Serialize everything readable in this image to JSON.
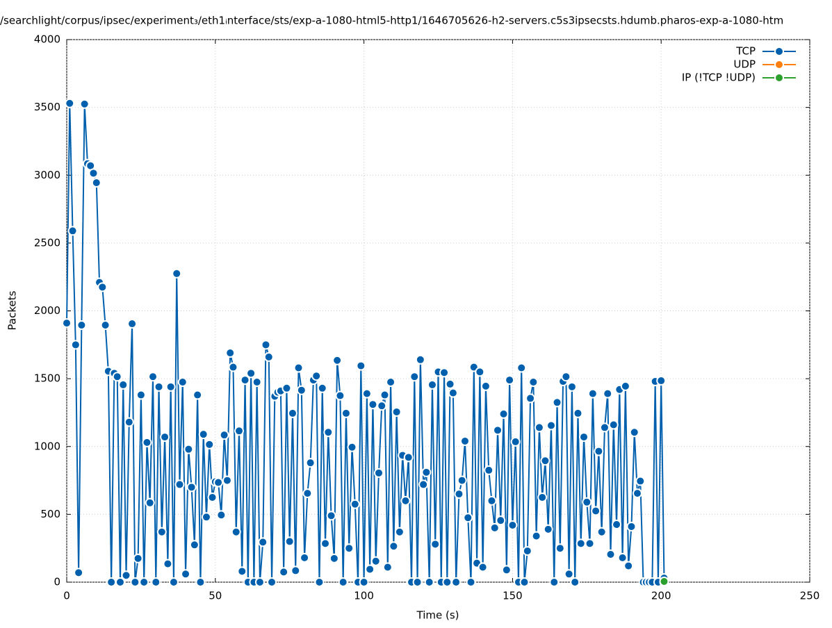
{
  "chart_data": {
    "type": "line",
    "title": "/searchlight/corpus/ipsec/experiment₃/eth1ᵢnterface/sts/exp-a-1080-html5-http1/1646705626-h2-servers.c5s3ipsecsts.hdumb.pharos-exp-a-1080-htm",
    "x_label": "Time (s)",
    "y_label": "Packets",
    "xlim": [
      0,
      250
    ],
    "xticks": [
      0,
      50,
      100,
      150,
      200,
      250
    ],
    "ylim": [
      0,
      4000
    ],
    "yticks": [
      0,
      500,
      1000,
      1500,
      2000,
      2500,
      3000,
      3500,
      4000
    ],
    "grid": true,
    "legend": "top-right",
    "series": [
      {
        "name": "TCP",
        "color": "#0060ad",
        "x": [
          0,
          1,
          2,
          3,
          4,
          5,
          6,
          7,
          8,
          9,
          10,
          11,
          12,
          13,
          14,
          15,
          16,
          17,
          18,
          19,
          20,
          21,
          22,
          23,
          24,
          25,
          26,
          27,
          28,
          29,
          30,
          31,
          32,
          33,
          34,
          35,
          36,
          37,
          38,
          39,
          40,
          41,
          42,
          43,
          44,
          45,
          46,
          47,
          48,
          49,
          50,
          51,
          52,
          53,
          54,
          55,
          56,
          57,
          58,
          59,
          60,
          61,
          62,
          63,
          64,
          65,
          66,
          67,
          68,
          69,
          70,
          71,
          72,
          73,
          74,
          75,
          76,
          77,
          78,
          79,
          80,
          81,
          82,
          83,
          84,
          85,
          86,
          87,
          88,
          89,
          90,
          91,
          92,
          93,
          94,
          95,
          96,
          97,
          98,
          99,
          100,
          101,
          102,
          103,
          104,
          105,
          106,
          107,
          108,
          109,
          110,
          111,
          112,
          113,
          114,
          115,
          116,
          117,
          118,
          119,
          120,
          121,
          122,
          123,
          124,
          125,
          126,
          127,
          128,
          129,
          130,
          131,
          132,
          133,
          134,
          135,
          136,
          137,
          138,
          139,
          140,
          141,
          142,
          143,
          144,
          145,
          146,
          147,
          148,
          149,
          150,
          151,
          152,
          153,
          154,
          155,
          156,
          157,
          158,
          159,
          160,
          161,
          162,
          163,
          164,
          165,
          166,
          167,
          168,
          169,
          170,
          171,
          172,
          173,
          174,
          175,
          176,
          177,
          178,
          179,
          180,
          181,
          182,
          183,
          184,
          185,
          186,
          187,
          188,
          189,
          190,
          191,
          192,
          193,
          194,
          195,
          196,
          197,
          198,
          199,
          200,
          201
        ],
        "values": [
          1910,
          3530,
          2590,
          1750,
          70,
          1895,
          3525,
          3085,
          3070,
          3015,
          2945,
          2210,
          2175,
          1895,
          1555,
          0,
          1540,
          1515,
          0,
          1455,
          50,
          1180,
          1905,
          0,
          175,
          1380,
          0,
          1030,
          585,
          1515,
          0,
          1440,
          370,
          1070,
          135,
          1440,
          0,
          2275,
          720,
          1475,
          60,
          980,
          700,
          275,
          1380,
          0,
          1090,
          480,
          1015,
          625,
          740,
          735,
          495,
          1085,
          750,
          1690,
          1585,
          370,
          1115,
          80,
          1490,
          0,
          1540,
          0,
          1475,
          0,
          295,
          1750,
          1660,
          0,
          1370,
          1400,
          1410,
          75,
          1430,
          300,
          1245,
          85,
          1580,
          1415,
          180,
          655,
          880,
          1490,
          1520,
          0,
          1430,
          285,
          1105,
          490,
          175,
          1635,
          1375,
          0,
          1245,
          250,
          995,
          575,
          0,
          1595,
          0,
          1390,
          95,
          1310,
          155,
          805,
          1300,
          1380,
          110,
          1475,
          265,
          1255,
          370,
          935,
          600,
          920,
          0,
          1515,
          0,
          1640,
          720,
          810,
          0,
          1455,
          280,
          1550,
          0,
          1545,
          0,
          1460,
          1395,
          0,
          650,
          750,
          1040,
          475,
          0,
          1585,
          140,
          1550,
          110,
          1445,
          825,
          600,
          400,
          1120,
          455,
          1240,
          90,
          1490,
          420,
          1035,
          0,
          1580,
          0,
          230,
          1355,
          1475,
          340,
          1140,
          625,
          895,
          390,
          1155,
          0,
          1325,
          250,
          1480,
          1515,
          60,
          1440,
          0,
          1245,
          285,
          1070,
          590,
          285,
          1390,
          525,
          965,
          370,
          1140,
          1390,
          205,
          1160,
          425,
          1420,
          180,
          1445,
          120,
          410,
          1105,
          655,
          745,
          0,
          0,
          0,
          0,
          1480,
          0,
          1485,
          30
        ]
      },
      {
        "name": "UDP",
        "color": "#ff7f0e",
        "x": [
          201
        ],
        "values": [
          0
        ]
      },
      {
        "name": "IP (!TCP  !UDP)",
        "color": "#2ca02c",
        "x": [
          201
        ],
        "values": [
          5
        ]
      }
    ]
  }
}
